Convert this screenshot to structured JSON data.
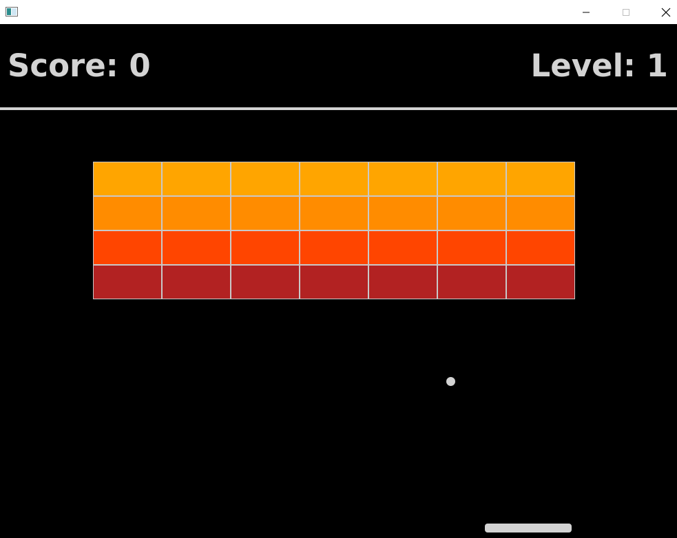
{
  "window": {
    "title": "",
    "controls": {
      "minimize_icon": "minimize-icon",
      "maximize_icon": "maximize-icon",
      "close_icon": "close-icon"
    }
  },
  "hud": {
    "score_text": "Score: 0",
    "level_text": "Level: 1",
    "text_color": "#d3d3d3"
  },
  "game": {
    "background_color": "#000000",
    "brick_rows": [
      {
        "color": "#ffa500",
        "count": 7
      },
      {
        "color": "#ff8c00",
        "count": 7
      },
      {
        "color": "#ff4500",
        "count": 7
      },
      {
        "color": "#b22222",
        "count": 7
      }
    ],
    "brick_border_color": "#c9c9c9",
    "ball_color": "#d3d3d3",
    "paddle_color": "#d3d3d3"
  }
}
